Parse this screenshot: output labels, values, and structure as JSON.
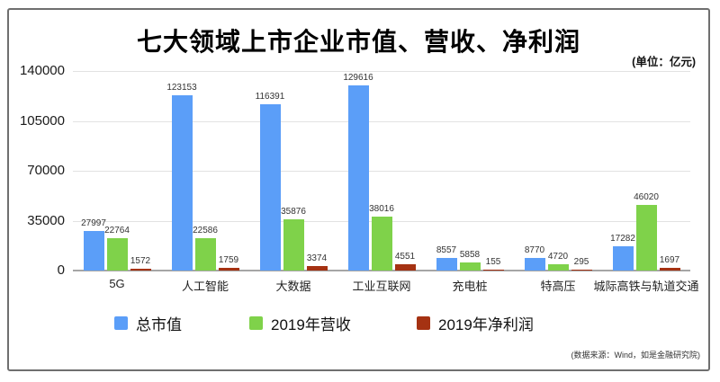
{
  "chart_data": {
    "type": "bar",
    "title": "七大领域上市企业市值、营收、净利润",
    "unit_note": "(单位：亿元)",
    "categories": [
      "5G",
      "人工智能",
      "大数据",
      "工业互联网",
      "充电桩",
      "特高压",
      "城际高铁与轨道交通"
    ],
    "series": [
      {
        "name": "总市值",
        "color": "#5B9EF8",
        "values": [
          27997,
          123153,
          116391,
          129616,
          8557,
          8770,
          17282
        ]
      },
      {
        "name": "2019年营收",
        "color": "#7FD24A",
        "values": [
          22764,
          22586,
          35876,
          38016,
          5858,
          4720,
          46020
        ]
      },
      {
        "name": "2019年净利润",
        "color": "#A53212",
        "values": [
          1572,
          1759,
          3374,
          4551,
          155,
          295,
          1697
        ]
      }
    ],
    "ylim": [
      0,
      140000
    ],
    "yticks": [
      0,
      35000,
      70000,
      105000,
      140000
    ],
    "grid": true,
    "legend_position": "bottom",
    "xlabel": "",
    "ylabel": ""
  },
  "source_note": "(数据来源：Wind，如是金融研究院)",
  "colors": {
    "grid": "#E2E2E2",
    "baseline": "#A6A6A6",
    "frame_border": "#6F6F6F"
  }
}
